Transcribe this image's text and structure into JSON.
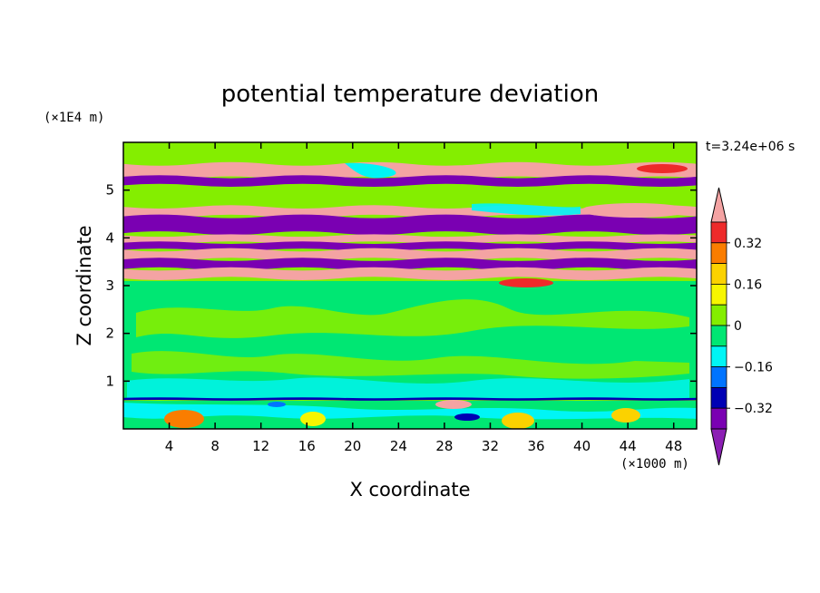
{
  "chart_data": {
    "type": "heatmap",
    "title": "potential temperature deviation",
    "xlabel": "X coordinate",
    "ylabel": "Z coordinate",
    "x_unit": "(×1000 m)",
    "y_unit": "(×1E4 m)",
    "time_label": "t=3.24e+06 s",
    "xlim": [
      0,
      50
    ],
    "ylim": [
      0,
      6
    ],
    "x_ticks": [
      4,
      8,
      12,
      16,
      20,
      24,
      28,
      32,
      36,
      40,
      44,
      48
    ],
    "y_ticks": [
      1,
      2,
      3,
      4,
      5
    ],
    "colorbar": {
      "levels": [
        -0.4,
        -0.32,
        -0.24,
        -0.16,
        -0.08,
        0,
        0.08,
        0.16,
        0.24,
        0.32,
        0.4
      ],
      "labeled_ticks": [
        0.32,
        0.16,
        0,
        -0.16,
        -0.32
      ],
      "labels": [
        "0.32",
        "0.16",
        "0",
        "−0.16",
        "−0.32"
      ],
      "colors_top_to_bottom": [
        "#f4a3a3",
        "#ee2a2a",
        "#fa7d00",
        "#fbd200",
        "#f7f600",
        "#84ee00",
        "#00e773",
        "#00f5f5",
        "#0074ff",
        "#0000b4",
        "#7a00b2",
        "#8c1fb4"
      ],
      "extend": "both"
    },
    "bands": [
      {
        "z": [
          5.25,
          5.55
        ],
        "level": 0.24,
        "color": "#f4a3a3"
      },
      {
        "z": [
          5.1,
          5.28
        ],
        "level": -0.32,
        "color": "#7a00b2"
      },
      {
        "z": [
          4.45,
          4.65
        ],
        "level": 0.24,
        "color": "#f4a3a3"
      },
      {
        "z": [
          4.1,
          4.45
        ],
        "level": -0.32,
        "color": "#7a00b2"
      },
      {
        "z": [
          3.9,
          4.05
        ],
        "level": 0.24,
        "color": "#f4a3a3"
      },
      {
        "z": [
          3.75,
          3.9
        ],
        "level": -0.32,
        "color": "#7a00b2"
      },
      {
        "z": [
          3.55,
          3.75
        ],
        "level": 0.24,
        "color": "#f4a3a3"
      },
      {
        "z": [
          3.35,
          3.55
        ],
        "level": -0.32,
        "color": "#7a00b2"
      },
      {
        "z": [
          3.15,
          3.35
        ],
        "level": 0.24,
        "color": "#f4a3a3"
      },
      {
        "z": [
          0.6,
          0.65
        ],
        "level": -0.24,
        "color": "#0000b4"
      }
    ]
  }
}
